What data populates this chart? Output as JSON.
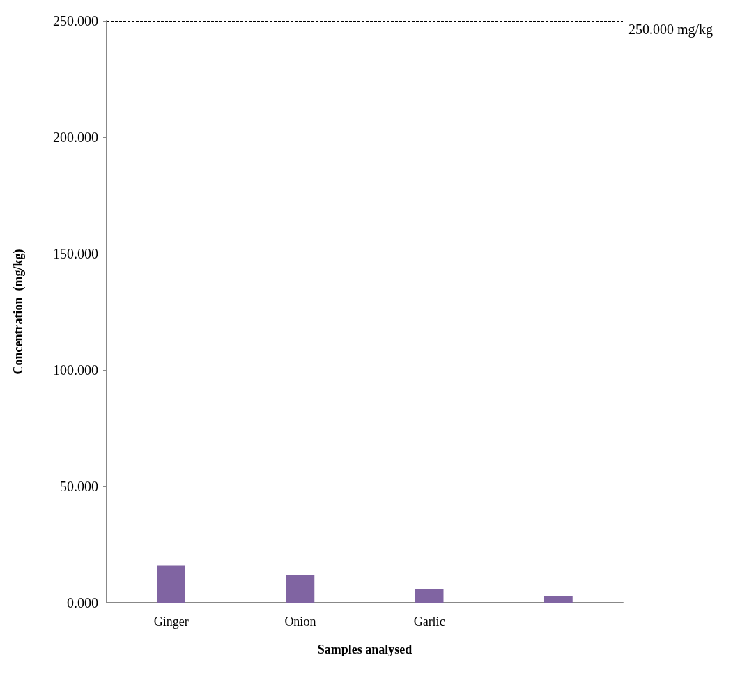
{
  "chart_data": {
    "type": "bar",
    "xlabel": "Samples analysed",
    "ylabel": "Concentration  (mg/kg)",
    "categories": [
      "Ginger",
      "Onion",
      "Garlic",
      null
    ],
    "values": [
      16,
      12,
      6,
      3
    ],
    "color": "#8064a2",
    "ylim": [
      0,
      250
    ],
    "yticks": [
      {
        "value": 0,
        "label": "0.000"
      },
      {
        "value": 50,
        "label": "50.000"
      },
      {
        "value": 100,
        "label": "100.000"
      },
      {
        "value": 150,
        "label": "150.000"
      },
      {
        "value": 200,
        "label": "200.000"
      },
      {
        "value": 250,
        "label": "250.000"
      }
    ],
    "ref_lines": [
      {
        "axis": "y",
        "value": 250,
        "label": "250.000 mg/kg",
        "color": "#000000",
        "line_style": "dashed"
      }
    ],
    "grid": false
  }
}
